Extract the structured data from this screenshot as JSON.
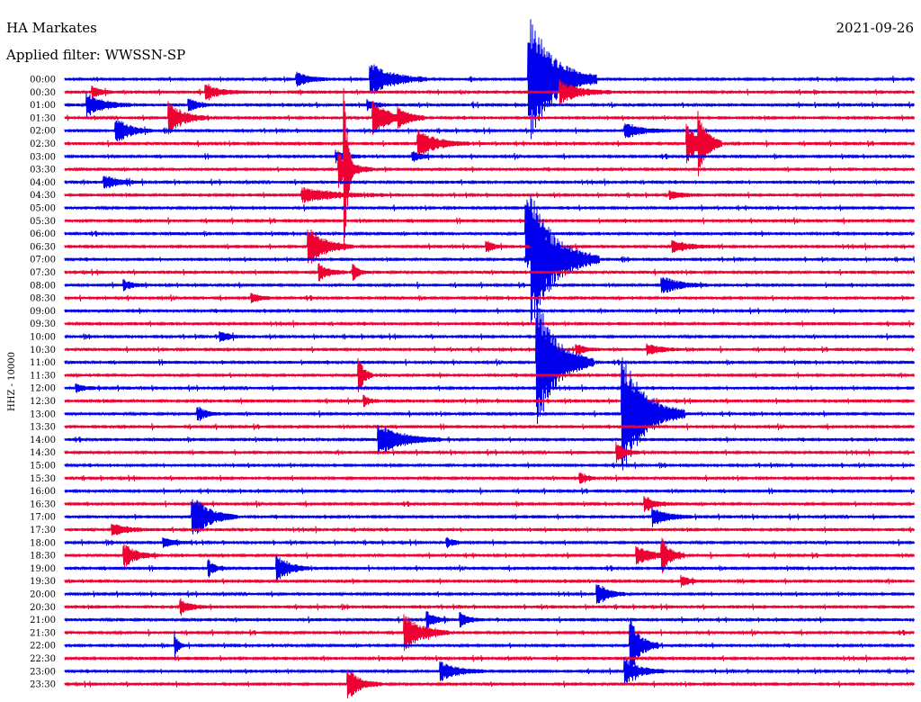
{
  "header": {
    "station": "HA Markates",
    "date": "2021-09-26",
    "filter": "Applied filter: WWSSN-SP"
  },
  "chart_data": {
    "type": "line",
    "title": "HA Markates",
    "subtitle": "Applied filter: WWSSN-SP",
    "ylabel": "HHZ - 10000",
    "date": "2021-09-26",
    "tick_labels": [
      "00:00",
      "00:30",
      "01:00",
      "01:30",
      "02:00",
      "02:30",
      "03:00",
      "03:30",
      "04:00",
      "04:30",
      "05:00",
      "05:30",
      "06:00",
      "06:30",
      "07:00",
      "07:30",
      "08:00",
      "08:30",
      "09:00",
      "09:30",
      "10:00",
      "10:30",
      "11:00",
      "11:30",
      "12:00",
      "12:30",
      "13:00",
      "13:30",
      "14:00",
      "14:30",
      "15:00",
      "15:30",
      "16:00",
      "16:30",
      "17:00",
      "17:30",
      "18:00",
      "18:30",
      "19:00",
      "19:30",
      "20:00",
      "20:30",
      "21:00",
      "21:30",
      "22:00",
      "22:30",
      "23:00",
      "23:30"
    ],
    "trace_minutes": 30,
    "series_colors": [
      "#0000ee",
      "#ee0033"
    ],
    "events": [
      {
        "row": 0,
        "minute": 8.2,
        "amp": 0.55,
        "dur": 1.2
      },
      {
        "row": 0,
        "minute": 10.8,
        "amp": 1.4,
        "dur": 2.0
      },
      {
        "row": 0,
        "minute": 16.4,
        "amp": 5.0,
        "dur": 2.4
      },
      {
        "row": 1,
        "minute": 1.0,
        "amp": 0.4,
        "dur": 0.8
      },
      {
        "row": 1,
        "minute": 5.0,
        "amp": 0.5,
        "dur": 1.5
      },
      {
        "row": 1,
        "minute": 17.5,
        "amp": 0.9,
        "dur": 1.8
      },
      {
        "row": 2,
        "minute": 0.8,
        "amp": 0.9,
        "dur": 1.6
      },
      {
        "row": 2,
        "minute": 4.4,
        "amp": 0.5,
        "dur": 0.8
      },
      {
        "row": 2,
        "minute": 10.7,
        "amp": 0.4,
        "dur": 0.8
      },
      {
        "row": 3,
        "minute": 3.7,
        "amp": 1.2,
        "dur": 1.4
      },
      {
        "row": 3,
        "minute": 10.9,
        "amp": 1.2,
        "dur": 1.8
      },
      {
        "row": 3,
        "minute": 11.8,
        "amp": 0.5,
        "dur": 1.0
      },
      {
        "row": 4,
        "minute": 1.8,
        "amp": 1.1,
        "dur": 1.3
      },
      {
        "row": 4,
        "minute": 19.8,
        "amp": 0.6,
        "dur": 1.6
      },
      {
        "row": 5,
        "minute": 12.5,
        "amp": 1.1,
        "dur": 1.8
      },
      {
        "row": 5,
        "minute": 22.0,
        "amp": 1.5,
        "dur": 1.2
      },
      {
        "row": 5,
        "minute": 22.4,
        "amp": 2.0,
        "dur": 0.8
      },
      {
        "row": 6,
        "minute": 9.6,
        "amp": 0.4,
        "dur": 1.0
      },
      {
        "row": 6,
        "minute": 12.3,
        "amp": 0.4,
        "dur": 0.8
      },
      {
        "row": 7,
        "minute": 9.7,
        "amp": 1.3,
        "dur": 1.2
      },
      {
        "row": 7,
        "minute": 9.9,
        "amp": 5.0,
        "dur": 0.3
      },
      {
        "row": 8,
        "minute": 1.4,
        "amp": 0.5,
        "dur": 1.5
      },
      {
        "row": 9,
        "minute": 8.4,
        "amp": 0.6,
        "dur": 3.0
      },
      {
        "row": 9,
        "minute": 21.4,
        "amp": 0.3,
        "dur": 1.2
      },
      {
        "row": 12,
        "minute": 16.3,
        "amp": 3.5,
        "dur": 0.8
      },
      {
        "row": 13,
        "minute": 8.6,
        "amp": 1.6,
        "dur": 1.6
      },
      {
        "row": 13,
        "minute": 14.9,
        "amp": 0.5,
        "dur": 0.6
      },
      {
        "row": 13,
        "minute": 21.5,
        "amp": 0.5,
        "dur": 1.4
      },
      {
        "row": 14,
        "minute": 16.5,
        "amp": 5.0,
        "dur": 2.4
      },
      {
        "row": 15,
        "minute": 9.0,
        "amp": 0.6,
        "dur": 1.0
      },
      {
        "row": 15,
        "minute": 10.2,
        "amp": 0.6,
        "dur": 0.6
      },
      {
        "row": 16,
        "minute": 2.1,
        "amp": 0.4,
        "dur": 0.8
      },
      {
        "row": 16,
        "minute": 21.1,
        "amp": 0.7,
        "dur": 1.6
      },
      {
        "row": 17,
        "minute": 6.6,
        "amp": 0.4,
        "dur": 0.8
      },
      {
        "row": 20,
        "minute": 5.5,
        "amp": 0.4,
        "dur": 0.9
      },
      {
        "row": 21,
        "minute": 18.1,
        "amp": 0.4,
        "dur": 0.8
      },
      {
        "row": 21,
        "minute": 20.6,
        "amp": 0.4,
        "dur": 1.2
      },
      {
        "row": 22,
        "minute": 16.7,
        "amp": 5.0,
        "dur": 2.0
      },
      {
        "row": 23,
        "minute": 10.4,
        "amp": 1.6,
        "dur": 0.5
      },
      {
        "row": 24,
        "minute": 0.4,
        "amp": 0.3,
        "dur": 0.8
      },
      {
        "row": 25,
        "minute": 10.6,
        "amp": 0.4,
        "dur": 0.5
      },
      {
        "row": 26,
        "minute": 4.7,
        "amp": 0.6,
        "dur": 0.8
      },
      {
        "row": 26,
        "minute": 19.7,
        "amp": 4.8,
        "dur": 2.2
      },
      {
        "row": 28,
        "minute": 11.1,
        "amp": 1.3,
        "dur": 2.2
      },
      {
        "row": 29,
        "minute": 19.5,
        "amp": 0.8,
        "dur": 0.8
      },
      {
        "row": 31,
        "minute": 18.2,
        "amp": 0.4,
        "dur": 0.6
      },
      {
        "row": 33,
        "minute": 20.5,
        "amp": 0.6,
        "dur": 1.0
      },
      {
        "row": 34,
        "minute": 4.5,
        "amp": 1.8,
        "dur": 1.6
      },
      {
        "row": 34,
        "minute": 20.8,
        "amp": 0.7,
        "dur": 1.4
      },
      {
        "row": 35,
        "minute": 1.7,
        "amp": 0.6,
        "dur": 1.2
      },
      {
        "row": 36,
        "minute": 3.5,
        "amp": 0.4,
        "dur": 1.0
      },
      {
        "row": 36,
        "minute": 13.5,
        "amp": 0.4,
        "dur": 0.6
      },
      {
        "row": 37,
        "minute": 2.1,
        "amp": 0.9,
        "dur": 1.2
      },
      {
        "row": 37,
        "minute": 20.2,
        "amp": 0.7,
        "dur": 1.6
      },
      {
        "row": 37,
        "minute": 21.1,
        "amp": 1.2,
        "dur": 0.8
      },
      {
        "row": 38,
        "minute": 5.1,
        "amp": 0.6,
        "dur": 0.6
      },
      {
        "row": 38,
        "minute": 7.5,
        "amp": 1.0,
        "dur": 1.2
      },
      {
        "row": 39,
        "minute": 21.8,
        "amp": 0.4,
        "dur": 0.8
      },
      {
        "row": 40,
        "minute": 18.8,
        "amp": 1.0,
        "dur": 1.0
      },
      {
        "row": 41,
        "minute": 4.1,
        "amp": 0.5,
        "dur": 1.0
      },
      {
        "row": 42,
        "minute": 12.8,
        "amp": 0.7,
        "dur": 0.8
      },
      {
        "row": 42,
        "minute": 14.0,
        "amp": 0.5,
        "dur": 0.8
      },
      {
        "row": 43,
        "minute": 12.0,
        "amp": 1.5,
        "dur": 1.6
      },
      {
        "row": 44,
        "minute": 3.9,
        "amp": 1.0,
        "dur": 0.3
      },
      {
        "row": 44,
        "minute": 20.0,
        "amp": 2.2,
        "dur": 1.0
      },
      {
        "row": 46,
        "minute": 13.3,
        "amp": 0.7,
        "dur": 1.6
      },
      {
        "row": 46,
        "minute": 19.8,
        "amp": 1.0,
        "dur": 1.4
      },
      {
        "row": 47,
        "minute": 10.0,
        "amp": 1.2,
        "dur": 1.2
      }
    ]
  }
}
